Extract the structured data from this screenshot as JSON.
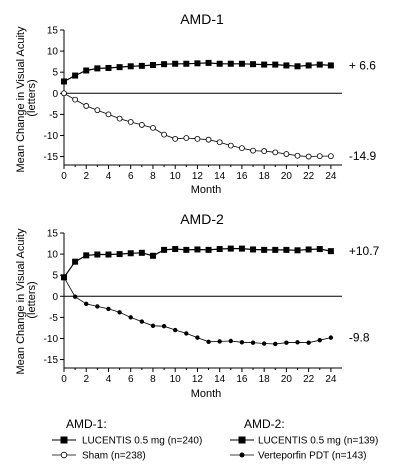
{
  "chart_data": [
    {
      "type": "line",
      "title": "AMD-1",
      "xlabel": "Month",
      "ylabel": "Mean Change in Visual Acuity (letters)",
      "ylabel_lines": [
        "Mean Change in Visual Acuity",
        "(letters)"
      ],
      "xlim": [
        0,
        25
      ],
      "ylim": [
        -17,
        15
      ],
      "xticks": [
        "0",
        "2",
        "4",
        "6",
        "8",
        "10",
        "12",
        "14",
        "16",
        "18",
        "20",
        "22",
        "24"
      ],
      "yticks": [
        "15",
        "10",
        "5",
        "0",
        "-5",
        "-10",
        "-15"
      ],
      "x": [
        0,
        1,
        2,
        3,
        4,
        5,
        6,
        7,
        8,
        9,
        10,
        11,
        12,
        13,
        14,
        15,
        16,
        17,
        18,
        19,
        20,
        21,
        22,
        23,
        24
      ],
      "series": [
        {
          "name": "LUCENTIS 0.5 mg (n=240)",
          "marker": "filled-square",
          "values": [
            2.8,
            4.2,
            5.4,
            5.9,
            6.0,
            6.2,
            6.4,
            6.5,
            6.7,
            6.9,
            7.0,
            7.0,
            7.1,
            7.2,
            7.0,
            7.0,
            7.0,
            6.9,
            6.8,
            6.8,
            6.6,
            6.4,
            6.6,
            6.8,
            6.6
          ],
          "end_label": "+ 6.6"
        },
        {
          "name": "Sham (n=238)",
          "marker": "open-circle",
          "values": [
            0.0,
            -1.5,
            -3.0,
            -4.0,
            -5.0,
            -6.0,
            -6.8,
            -7.5,
            -8.2,
            -9.8,
            -10.8,
            -10.6,
            -10.8,
            -11.0,
            -11.6,
            -12.4,
            -13.0,
            -13.6,
            -13.7,
            -14.0,
            -14.4,
            -14.8,
            -15.0,
            -14.9,
            -14.9
          ],
          "end_label": "-14.9"
        }
      ]
    },
    {
      "type": "line",
      "title": "AMD-2",
      "xlabel": "Month",
      "ylabel": "Mean Change in Visual Acuity (letters)",
      "ylabel_lines": [
        "Mean Change in Visual Acuity",
        "(letters)"
      ],
      "xlim": [
        0,
        25
      ],
      "ylim": [
        -17,
        15
      ],
      "xticks": [
        "0",
        "2",
        "4",
        "6",
        "8",
        "10",
        "12",
        "14",
        "16",
        "18",
        "20",
        "22",
        "24"
      ],
      "yticks": [
        "15",
        "10",
        "5",
        "0",
        "-5",
        "-10",
        "-15"
      ],
      "x": [
        0,
        1,
        2,
        3,
        4,
        5,
        6,
        7,
        8,
        9,
        10,
        11,
        12,
        13,
        14,
        15,
        16,
        17,
        18,
        19,
        20,
        21,
        22,
        23,
        24
      ],
      "series": [
        {
          "name": "LUCENTIS 0.5 mg (n=139)",
          "marker": "filled-square",
          "values": [
            4.5,
            8.2,
            9.7,
            9.9,
            9.9,
            10.0,
            10.2,
            10.3,
            9.6,
            11.0,
            11.2,
            11.0,
            11.1,
            11.0,
            11.2,
            11.3,
            11.3,
            11.1,
            11.0,
            11.0,
            11.0,
            10.9,
            11.1,
            11.2,
            10.7
          ],
          "end_label": "+10.7"
        },
        {
          "name": "Verteporfin PDT (n=143)",
          "marker": "filled-circle",
          "values": [
            4.5,
            -0.1,
            -1.8,
            -2.4,
            -3.0,
            -3.8,
            -5.0,
            -6.0,
            -7.0,
            -7.1,
            -8.0,
            -8.8,
            -9.8,
            -10.8,
            -10.7,
            -10.6,
            -10.9,
            -11.0,
            -11.2,
            -11.3,
            -11.0,
            -10.9,
            -11.0,
            -10.4,
            -9.8
          ],
          "end_label": "-9.8"
        }
      ]
    }
  ],
  "legend": {
    "groups": [
      {
        "heading": "AMD-1:",
        "items": [
          {
            "label": "LUCENTIS 0.5 mg (n=240)",
            "marker": "filled-square"
          },
          {
            "label": "Sham (n=238)",
            "marker": "open-circle"
          }
        ]
      },
      {
        "heading": "AMD-2:",
        "items": [
          {
            "label": "LUCENTIS 0.5 mg (n=139)",
            "marker": "filled-square"
          },
          {
            "label": "Verteporfin PDT (n=143)",
            "marker": "filled-circle"
          }
        ]
      }
    ]
  }
}
